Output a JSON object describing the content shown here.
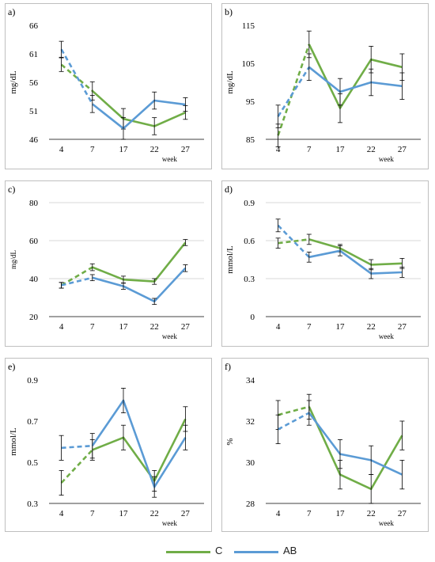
{
  "colors": {
    "C": "#70ad47",
    "AB": "#5b9bd5",
    "axis": "#000000",
    "grid": "#d9d9d9",
    "frame": "#bfbfbf"
  },
  "legend": [
    {
      "key": "C",
      "label": "C"
    },
    {
      "key": "AB",
      "label": "AB"
    }
  ],
  "chart_data": [
    {
      "type": "line",
      "panel_label": "a)",
      "ylabel": "mg/dL",
      "xlabel": "week",
      "categories": [
        "4",
        "7",
        "17",
        "22",
        "27"
      ],
      "ylim": [
        46,
        66
      ],
      "yticks": [
        46,
        51,
        56,
        61,
        66
      ],
      "dashed_first_segment": true,
      "grid": false,
      "series": [
        {
          "name": "C",
          "values": [
            59.1,
            54.5,
            49.6,
            48.3,
            50.7
          ],
          "errors": [
            1.2,
            1.6,
            1.8,
            1.5,
            1.2
          ]
        },
        {
          "name": "AB",
          "values": [
            61.8,
            52.2,
            47.9,
            52.8,
            52.1
          ],
          "errors": [
            1.4,
            1.5,
            1.9,
            1.5,
            1.2
          ]
        }
      ]
    },
    {
      "type": "line",
      "panel_label": "b)",
      "ylabel": "mg/dL",
      "xlabel": "week",
      "categories": [
        "4",
        "7",
        "17",
        "22",
        "27"
      ],
      "ylim": [
        85,
        115
      ],
      "yticks": [
        85,
        95,
        105,
        115
      ],
      "dashed_first_segment": true,
      "grid": false,
      "series": [
        {
          "name": "C",
          "values": [
            86,
            110,
            93.2,
            106,
            104
          ],
          "errors": [
            3.0,
            3.5,
            3.8,
            3.5,
            3.5
          ]
        },
        {
          "name": "AB",
          "values": [
            91,
            104,
            97.5,
            100,
            99
          ],
          "errors": [
            3.0,
            3.5,
            3.5,
            3.5,
            3.5
          ]
        }
      ]
    },
    {
      "type": "line",
      "panel_label": "c)",
      "ylabel": "mg/dL",
      "xlabel": "week",
      "categories": [
        "4",
        "7",
        "17",
        "22",
        "27"
      ],
      "ylim": [
        20,
        80
      ],
      "yticks": [
        20,
        40,
        60,
        80
      ],
      "dashed_first_segment": true,
      "grid": true,
      "series": [
        {
          "name": "C",
          "values": [
            36.5,
            46,
            39.5,
            38.5,
            59
          ],
          "errors": [
            1.5,
            1.8,
            1.8,
            1.5,
            1.6
          ]
        },
        {
          "name": "AB",
          "values": [
            36.5,
            40.5,
            36,
            28,
            45.5
          ],
          "errors": [
            1.5,
            1.6,
            1.6,
            1.6,
            1.8
          ]
        }
      ]
    },
    {
      "type": "line",
      "panel_label": "d)",
      "ylabel": "mmol/L",
      "xlabel": "week",
      "categories": [
        "4",
        "7",
        "17",
        "22",
        "27"
      ],
      "ylim": [
        0,
        0.9
      ],
      "yticks": [
        0,
        0.3,
        0.6,
        0.9
      ],
      "dashed_first_segment": true,
      "grid": true,
      "series": [
        {
          "name": "C",
          "values": [
            0.58,
            0.61,
            0.54,
            0.41,
            0.42
          ],
          "errors": [
            0.04,
            0.04,
            0.03,
            0.04,
            0.04
          ]
        },
        {
          "name": "AB",
          "values": [
            0.72,
            0.47,
            0.52,
            0.34,
            0.35
          ],
          "errors": [
            0.05,
            0.04,
            0.04,
            0.04,
            0.04
          ]
        }
      ]
    },
    {
      "type": "line",
      "panel_label": "e)",
      "ylabel": "mmol/L",
      "xlabel": "week",
      "categories": [
        "4",
        "7",
        "17",
        "22",
        "27"
      ],
      "ylim": [
        0.3,
        0.9
      ],
      "yticks": [
        0.3,
        0.5,
        0.7,
        0.9
      ],
      "dashed_first_segment": true,
      "grid": false,
      "series": [
        {
          "name": "C",
          "values": [
            0.4,
            0.56,
            0.62,
            0.41,
            0.71
          ],
          "errors": [
            0.06,
            0.05,
            0.06,
            0.05,
            0.06
          ]
        },
        {
          "name": "AB",
          "values": [
            0.57,
            0.58,
            0.8,
            0.38,
            0.62
          ],
          "errors": [
            0.06,
            0.06,
            0.06,
            0.05,
            0.06
          ]
        }
      ]
    },
    {
      "type": "line",
      "panel_label": "f)",
      "ylabel": "%",
      "xlabel": "week",
      "categories": [
        "4",
        "7",
        "17",
        "22",
        "27"
      ],
      "ylim": [
        28,
        34
      ],
      "yticks": [
        28,
        30,
        32,
        34
      ],
      "dashed_first_segment": true,
      "grid": false,
      "series": [
        {
          "name": "C",
          "values": [
            32.3,
            32.7,
            29.4,
            28.7,
            31.3
          ],
          "errors": [
            0.7,
            0.6,
            0.7,
            0.7,
            0.7
          ]
        },
        {
          "name": "AB",
          "values": [
            31.6,
            32.4,
            30.4,
            30.1,
            29.4
          ],
          "errors": [
            0.7,
            0.6,
            0.7,
            0.7,
            0.7
          ]
        }
      ]
    }
  ]
}
